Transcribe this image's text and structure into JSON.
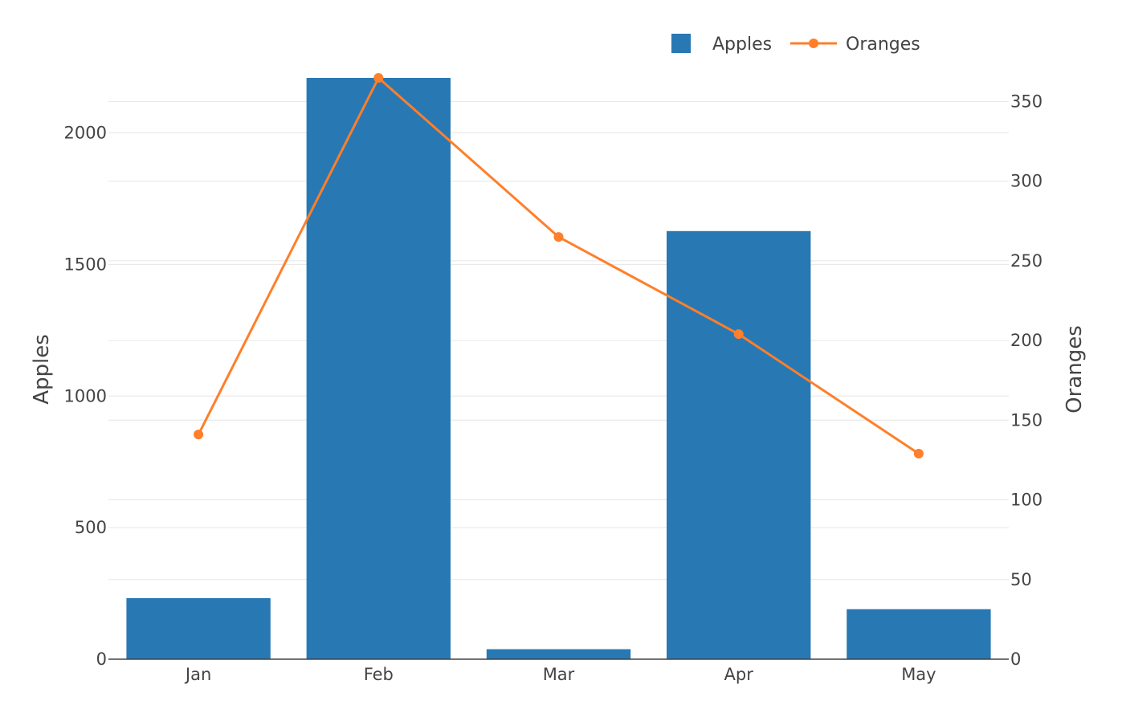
{
  "chart_data": {
    "type": "bar",
    "categories": [
      "Jan",
      "Feb",
      "Mar",
      "Apr",
      "May"
    ],
    "series": [
      {
        "name": "Apples",
        "type": "bar",
        "axis": "y1",
        "values": [
          232,
          2212,
          38,
          1627,
          190
        ],
        "color": "#2878b4"
      },
      {
        "name": "Oranges",
        "type": "line",
        "axis": "y2",
        "values": [
          141,
          366,
          265,
          204,
          129
        ],
        "color": "#ff7f2a"
      }
    ],
    "y1": {
      "label": "Apples",
      "ylim": [
        0,
        2200
      ],
      "ticks": [
        0,
        500,
        1000,
        1500,
        2000
      ]
    },
    "y2": {
      "label": "Oranges",
      "ylim": [
        0,
        350
      ],
      "ticks": [
        0,
        50,
        100,
        150,
        200,
        250,
        300,
        350
      ]
    },
    "grid": true,
    "legend_position": "top-right"
  }
}
